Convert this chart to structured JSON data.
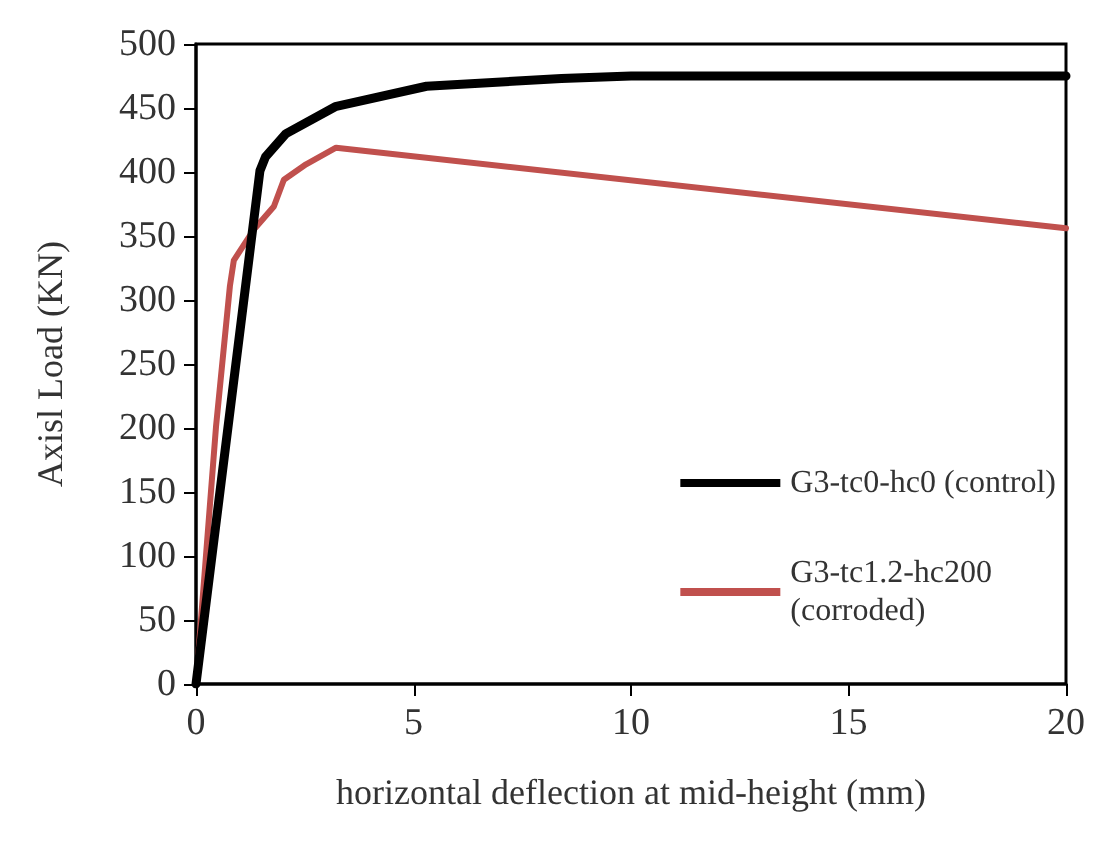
{
  "chart_data": {
    "type": "line",
    "xlabel": "horizontal deflection at mid-height (mm)",
    "ylabel": "Axisl Load (KN)",
    "xlim": [
      0,
      20
    ],
    "xticks": [
      0,
      5,
      10,
      15,
      20
    ],
    "ylim": [
      0,
      500
    ],
    "yticks": [
      0,
      50,
      100,
      150,
      200,
      250,
      300,
      350,
      400,
      450,
      500
    ],
    "grid": false,
    "legend": "right",
    "marker": "none",
    "line_style": "solid",
    "series": [
      {
        "name": "G3-tc0-hc0 (control)",
        "color": "#000000",
        "x": [
          0,
          1.47,
          1.6,
          2.07,
          3.2,
          5.3,
          8.4,
          10,
          20
        ],
        "values": [
          0,
          401,
          412,
          430,
          451,
          467,
          473,
          475,
          475
        ]
      },
      {
        "name": "G3-tc1.2-hc200\n(corroded)",
        "color": "#c0504d",
        "x": [
          0,
          0.46,
          0.78,
          0.87,
          1.33,
          1.79,
          2.02,
          2.53,
          3.22,
          20
        ],
        "values": [
          0,
          201,
          311,
          331,
          355,
          373,
          394,
          406,
          419,
          356
        ]
      }
    ]
  }
}
